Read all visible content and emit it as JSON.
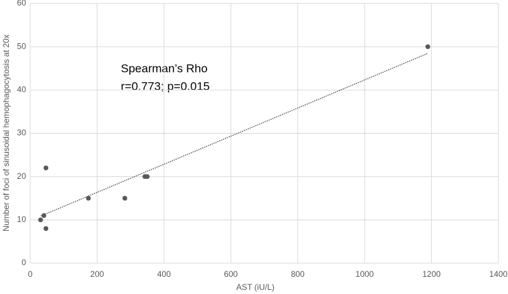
{
  "chart_data": {
    "type": "scatter",
    "xlabel": "AST (iU/L)",
    "ylabel": "Number of foci of sinusoidal hemophagocytosis at 20x",
    "annotations": [
      "Spearman’s Rho",
      "r=0.773; p=0.015"
    ],
    "series": [
      {
        "color": "#595959",
        "x": [
          1189,
          47,
          174,
          283,
          343,
          350,
          31,
          41,
          47
        ],
        "values": [
          50,
          22,
          15,
          15,
          20,
          20,
          10,
          11,
          8
        ]
      }
    ],
    "trendline": {
      "color": "#404040",
      "x": [
        32,
        1187
      ],
      "values": [
        10.9,
        48.4
      ]
    },
    "xlim": [
      0,
      1400
    ],
    "xticks": [
      0,
      200,
      400,
      600,
      800,
      1000,
      1200,
      1400
    ],
    "ylim": [
      0,
      60
    ],
    "yticks": [
      0,
      10,
      20,
      30,
      40,
      50,
      60
    ],
    "grid": true
  }
}
